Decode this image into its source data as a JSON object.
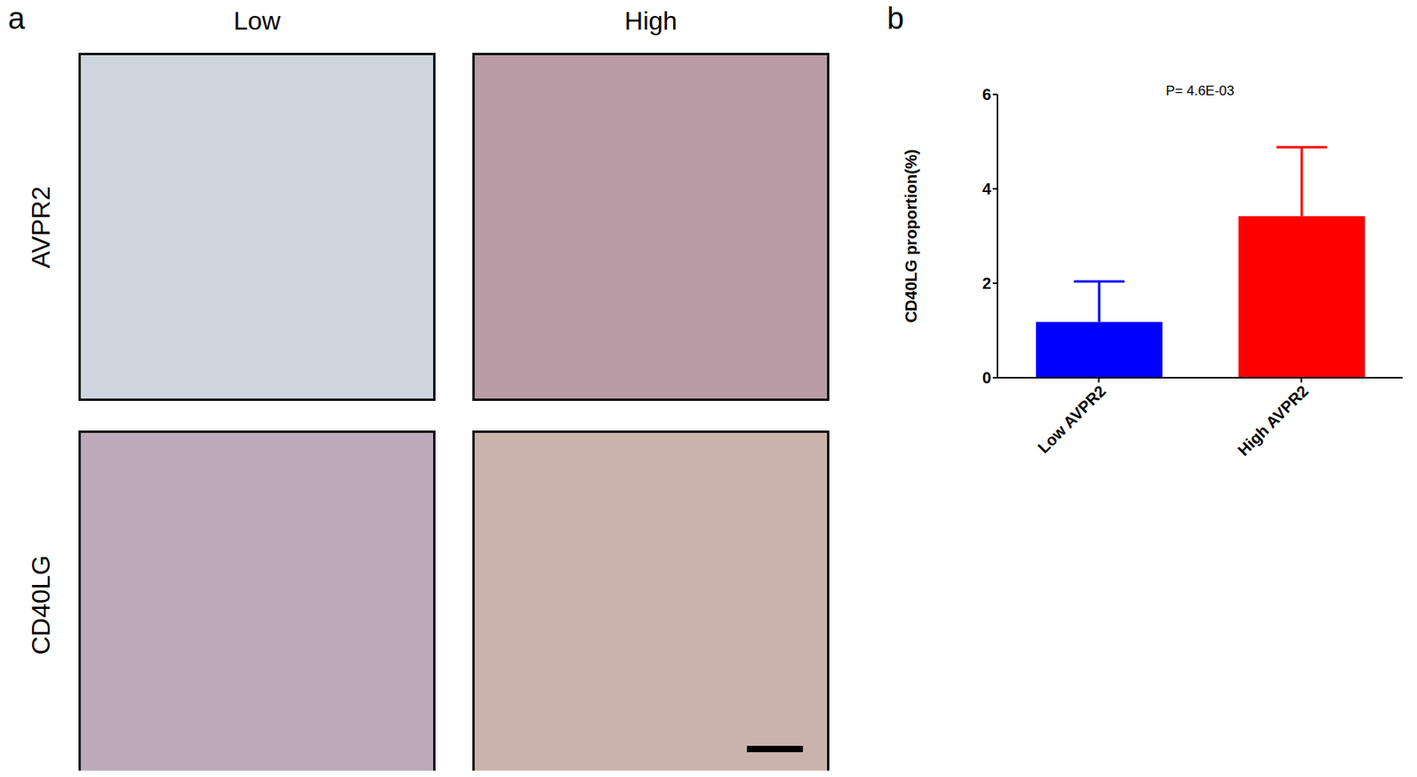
{
  "figure": {
    "panel_labels": [
      "a",
      "b"
    ],
    "columns": [
      "Low",
      "High"
    ],
    "rows": [
      "AVPR2",
      "CD40LG"
    ]
  },
  "chart_data": {
    "type": "bar",
    "title": "P= 4.6E-03",
    "y_label": "CD40LG proportion(%)",
    "categories": [
      "Low AVPR2",
      "High AVPR2"
    ],
    "values": [
      1.18,
      3.42
    ],
    "error": [
      0.86,
      1.46
    ],
    "colors": [
      "#0000ff",
      "#ff0000"
    ],
    "ylim": [
      0,
      6
    ],
    "yticks": [
      0,
      2,
      4,
      6
    ],
    "grid": false
  }
}
